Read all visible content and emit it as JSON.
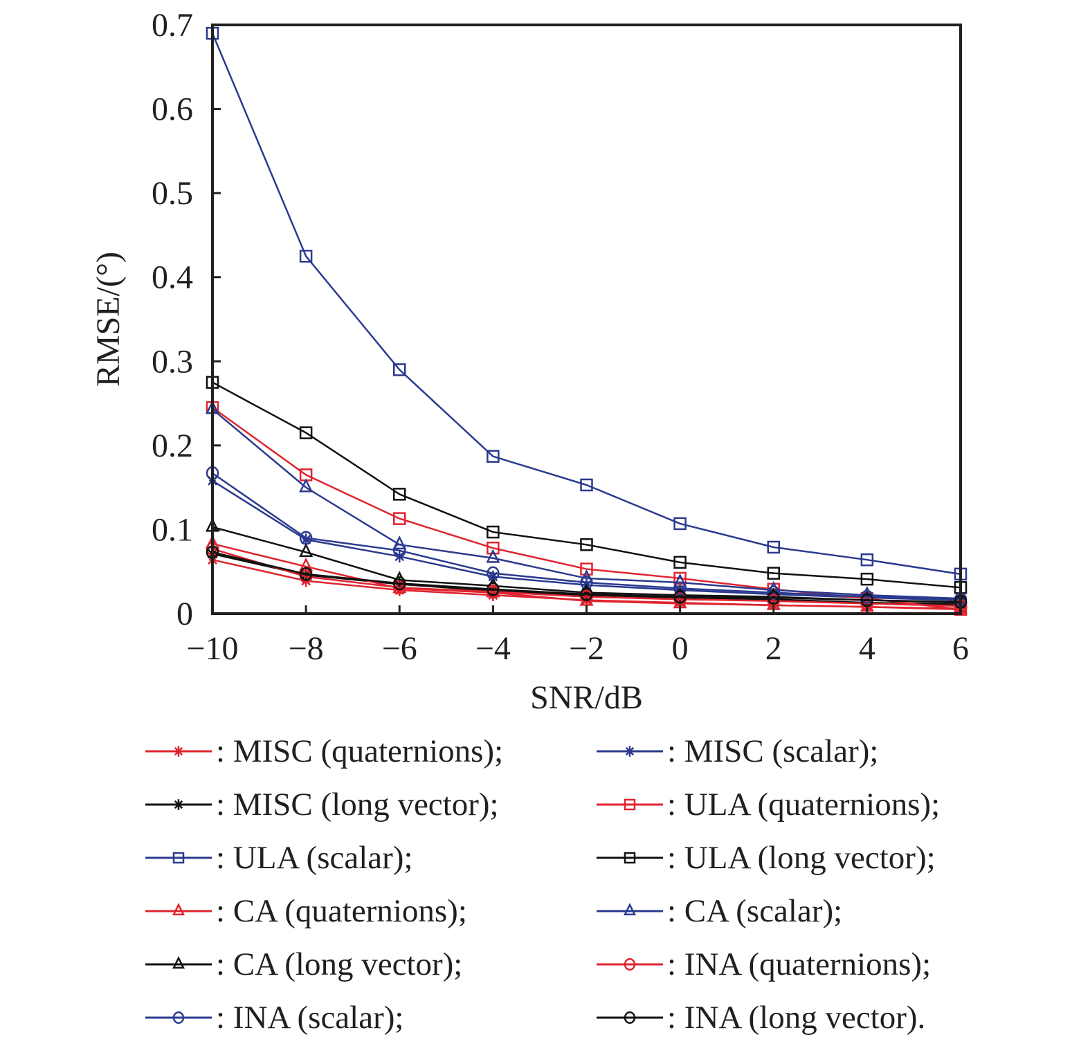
{
  "chart_data": {
    "type": "line",
    "title": "",
    "xlabel": "SNR/dB",
    "ylabel": "RMSE/(°)",
    "x": [
      -10,
      -8,
      -6,
      -4,
      -2,
      0,
      2,
      4,
      6
    ],
    "xlim": [
      -10,
      6
    ],
    "ylim": [
      0,
      0.7
    ],
    "xticks": [
      -10,
      -8,
      -6,
      -4,
      -2,
      0,
      2,
      4,
      6
    ],
    "xtick_labels": [
      "−10",
      "−8",
      "−6",
      "−4",
      "−2",
      "0",
      "2",
      "4",
      "6"
    ],
    "yticks": [
      0,
      0.1,
      0.2,
      0.3,
      0.4,
      0.5,
      0.6,
      0.7
    ],
    "ytick_labels": [
      "0",
      "0.1",
      "0.2",
      "0.3",
      "0.4",
      "0.5",
      "0.6",
      "0.7"
    ],
    "grid": false,
    "legend_placement": "below",
    "series": [
      {
        "name": ": MISC (quaternions);",
        "color": "#e0242f",
        "marker": "star",
        "values": [
          0.064,
          0.039,
          0.028,
          0.022,
          0.016,
          0.013,
          0.01,
          0.008,
          0.006
        ]
      },
      {
        "name": ": MISC (scalar);",
        "color": "#2b3a8f",
        "marker": "star",
        "values": [
          0.158,
          0.088,
          0.068,
          0.044,
          0.034,
          0.028,
          0.023,
          0.019,
          0.016
        ]
      },
      {
        "name": ": MISC (long vector);",
        "color": "#111111",
        "marker": "star",
        "values": [
          0.071,
          0.046,
          0.035,
          0.027,
          0.022,
          0.019,
          0.017,
          0.013,
          0.011
        ]
      },
      {
        "name": ": ULA (quaternions);",
        "color": "#e0242f",
        "marker": "square",
        "values": [
          0.245,
          0.165,
          0.113,
          0.078,
          0.053,
          0.042,
          0.029,
          0.018,
          0.005
        ]
      },
      {
        "name": ": ULA (scalar);",
        "color": "#2b3a8f",
        "marker": "square",
        "values": [
          0.69,
          0.425,
          0.29,
          0.187,
          0.153,
          0.107,
          0.079,
          0.064,
          0.047
        ]
      },
      {
        "name": ": ULA (long vector);",
        "color": "#111111",
        "marker": "square",
        "values": [
          0.275,
          0.215,
          0.142,
          0.097,
          0.082,
          0.061,
          0.048,
          0.041,
          0.031
        ]
      },
      {
        "name": ": CA (quaternions);",
        "color": "#e0242f",
        "marker": "triangle",
        "values": [
          0.083,
          0.056,
          0.03,
          0.025,
          0.015,
          0.012,
          0.01,
          0.008,
          0.005
        ]
      },
      {
        "name": ": CA (scalar);",
        "color": "#2b3a8f",
        "marker": "triangle",
        "values": [
          0.243,
          0.15,
          0.082,
          0.066,
          0.042,
          0.037,
          0.028,
          0.022,
          0.018
        ]
      },
      {
        "name": ": CA (long vector);",
        "color": "#111111",
        "marker": "triangle",
        "values": [
          0.103,
          0.073,
          0.04,
          0.033,
          0.025,
          0.022,
          0.02,
          0.016,
          0.013
        ]
      },
      {
        "name": ": INA (quaternions);",
        "color": "#e0242f",
        "marker": "circle",
        "values": [
          0.077,
          0.044,
          0.031,
          0.026,
          0.02,
          0.017,
          0.015,
          0.012,
          0.009
        ]
      },
      {
        "name": ": INA (scalar);",
        "color": "#2b3a8f",
        "marker": "circle",
        "values": [
          0.167,
          0.09,
          0.075,
          0.048,
          0.037,
          0.03,
          0.025,
          0.02,
          0.017
        ]
      },
      {
        "name": ": INA (long vector).",
        "color": "#111111",
        "marker": "circle",
        "values": [
          0.073,
          0.047,
          0.036,
          0.029,
          0.023,
          0.02,
          0.019,
          0.016,
          0.014
        ]
      }
    ],
    "legend_order": [
      ": MISC (quaternions);",
      ": MISC (scalar);",
      ": MISC (long vector);",
      ": ULA (quaternions);",
      ": ULA (scalar);",
      ": ULA (long vector);",
      ": CA (quaternions);",
      ": CA (scalar);",
      ": CA (long vector);",
      ": INA (quaternions);",
      ": INA (scalar);",
      ": INA (long vector)."
    ]
  }
}
